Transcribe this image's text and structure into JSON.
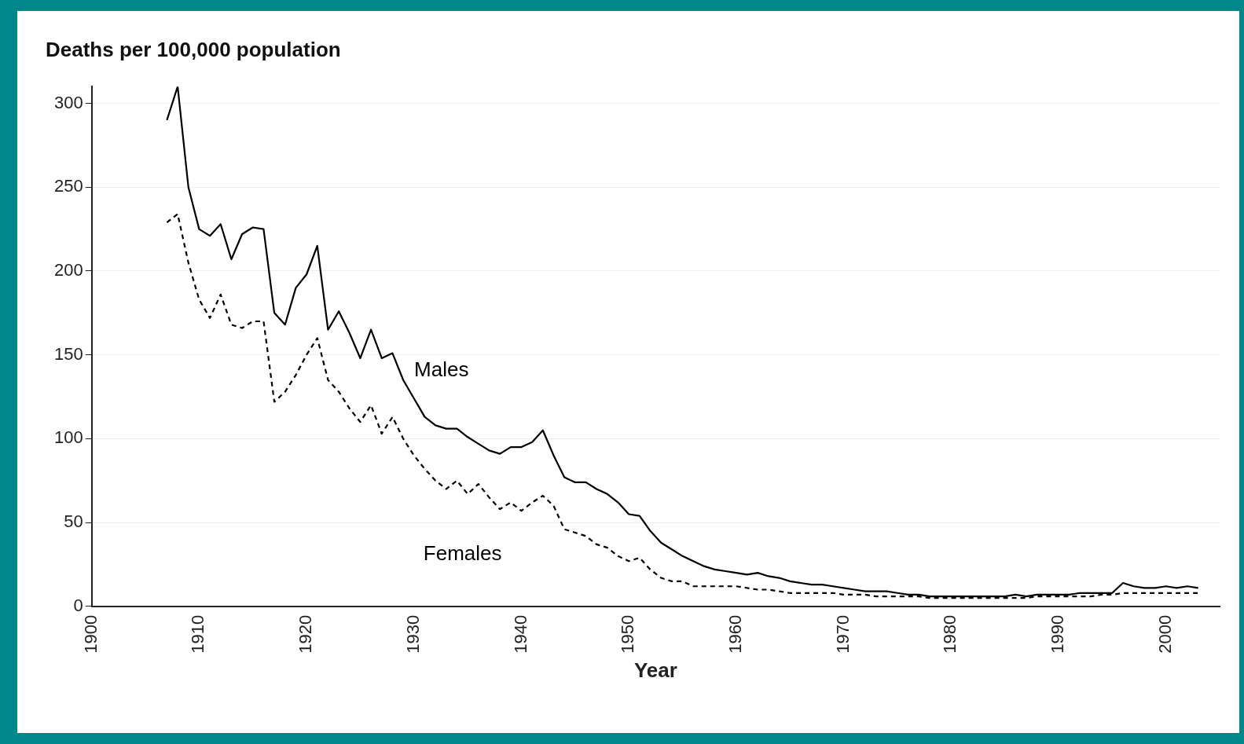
{
  "chart_data": {
    "type": "line",
    "ylabel": "Deaths per 100,000 population",
    "xlabel": "Year",
    "x": [
      1907,
      1908,
      1909,
      1910,
      1911,
      1912,
      1913,
      1914,
      1915,
      1916,
      1917,
      1918,
      1919,
      1920,
      1921,
      1922,
      1923,
      1924,
      1925,
      1926,
      1927,
      1928,
      1929,
      1930,
      1931,
      1932,
      1933,
      1934,
      1935,
      1936,
      1937,
      1938,
      1939,
      1940,
      1941,
      1942,
      1943,
      1944,
      1945,
      1946,
      1947,
      1948,
      1949,
      1950,
      1951,
      1952,
      1953,
      1954,
      1955,
      1956,
      1957,
      1958,
      1959,
      1960,
      1961,
      1962,
      1963,
      1964,
      1965,
      1966,
      1967,
      1968,
      1969,
      1970,
      1971,
      1972,
      1973,
      1974,
      1975,
      1976,
      1977,
      1978,
      1979,
      1980,
      1981,
      1982,
      1983,
      1984,
      1985,
      1986,
      1987,
      1988,
      1989,
      1990,
      1991,
      1992,
      1993,
      1994,
      1995,
      1996,
      1997,
      1998,
      1999,
      2000,
      2001,
      2002,
      2003
    ],
    "series": [
      {
        "name": "Males",
        "color": "#000000",
        "line_style": "solid",
        "values": [
          290,
          310,
          250,
          225,
          221,
          228,
          207,
          222,
          226,
          225,
          175,
          168,
          190,
          198,
          215,
          165,
          176,
          163,
          148,
          165,
          148,
          151,
          135,
          124,
          113,
          108,
          106,
          106,
          101,
          97,
          93,
          91,
          95,
          95,
          98,
          105,
          90,
          77,
          74,
          74,
          70,
          67,
          62,
          55,
          54,
          45,
          38,
          34,
          30,
          27,
          24,
          22,
          21,
          20,
          19,
          20,
          18,
          17,
          15,
          14,
          13,
          13,
          12,
          11,
          10,
          9,
          9,
          9,
          8,
          7,
          7,
          6,
          6,
          6,
          6,
          6,
          6,
          6,
          6,
          7,
          6,
          7,
          7,
          7,
          7,
          8,
          8,
          8,
          8,
          14,
          12,
          11,
          11,
          12,
          11,
          12,
          11
        ]
      },
      {
        "name": "Females",
        "color": "#000000",
        "line_style": "dashed",
        "values": [
          229,
          234,
          205,
          183,
          172,
          186,
          168,
          166,
          170,
          170,
          122,
          128,
          138,
          150,
          160,
          135,
          128,
          118,
          110,
          120,
          103,
          113,
          100,
          90,
          82,
          75,
          70,
          75,
          67,
          73,
          65,
          58,
          62,
          57,
          62,
          66,
          60,
          46,
          44,
          42,
          37,
          35,
          30,
          27,
          29,
          22,
          17,
          15,
          15,
          12,
          12,
          12,
          12,
          12,
          11,
          10,
          10,
          9,
          8,
          8,
          8,
          8,
          8,
          7,
          7,
          7,
          6,
          6,
          6,
          6,
          6,
          5,
          5,
          5,
          5,
          5,
          5,
          5,
          5,
          5,
          5,
          6,
          6,
          6,
          6,
          6,
          6,
          7,
          7,
          8,
          8,
          8,
          8,
          8,
          8,
          8,
          8
        ]
      }
    ],
    "xlim": [
      1900,
      2005
    ],
    "xticks": [
      1900,
      1910,
      1920,
      1930,
      1940,
      1950,
      1960,
      1970,
      1980,
      1990,
      2000
    ],
    "ylim": [
      0,
      310
    ],
    "yticks": [
      0,
      50,
      100,
      150,
      200,
      250,
      300
    ],
    "grid": "y",
    "legend": false,
    "marker": "none"
  }
}
